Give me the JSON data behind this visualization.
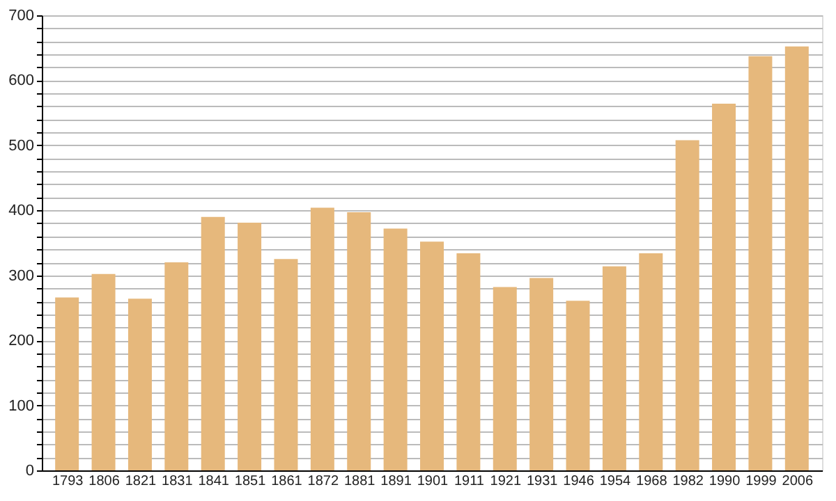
{
  "chart_data": {
    "type": "bar",
    "categories": [
      "1793",
      "1806",
      "1821",
      "1831",
      "1841",
      "1851",
      "1861",
      "1872",
      "1881",
      "1891",
      "1901",
      "1911",
      "1921",
      "1931",
      "1946",
      "1954",
      "1968",
      "1982",
      "1990",
      "1999",
      "2006"
    ],
    "values": [
      266,
      302,
      264,
      320,
      390,
      381,
      325,
      404,
      397,
      372,
      352,
      334,
      282,
      296,
      261,
      314,
      334,
      508,
      564,
      637,
      652
    ],
    "color": "#e6b87c",
    "ylim": [
      0,
      700
    ],
    "yticks": [
      0,
      {
        "value": 20,
        "label": null
      },
      {
        "value": 40,
        "label": null
      },
      {
        "value": 60,
        "label": null
      },
      {
        "value": 80,
        "label": null
      },
      100,
      {
        "value": 120,
        "label": null
      },
      {
        "value": 140,
        "label": null
      },
      {
        "value": 160,
        "label": null
      },
      {
        "value": 180,
        "label": null
      },
      200,
      {
        "value": 220,
        "label": null
      },
      {
        "value": 240,
        "label": null
      },
      {
        "value": 260,
        "label": null
      },
      {
        "value": 280,
        "label": null
      },
      300,
      {
        "value": 320,
        "label": null
      },
      {
        "value": 340,
        "label": null
      },
      {
        "value": 360,
        "label": null
      },
      {
        "value": 380,
        "label": null
      },
      400,
      {
        "value": 420,
        "label": null
      },
      {
        "value": 440,
        "label": null
      },
      {
        "value": 460,
        "label": null
      },
      {
        "value": 480,
        "label": null
      },
      500,
      {
        "value": 520,
        "label": null
      },
      {
        "value": 540,
        "label": null
      },
      {
        "value": 560,
        "label": null
      },
      {
        "value": 580,
        "label": null
      },
      600,
      {
        "value": 620,
        "label": null
      },
      {
        "value": 640,
        "label": null
      },
      {
        "value": 660,
        "label": null
      },
      {
        "value": 680,
        "label": null
      },
      700
    ],
    "grid": "y"
  }
}
